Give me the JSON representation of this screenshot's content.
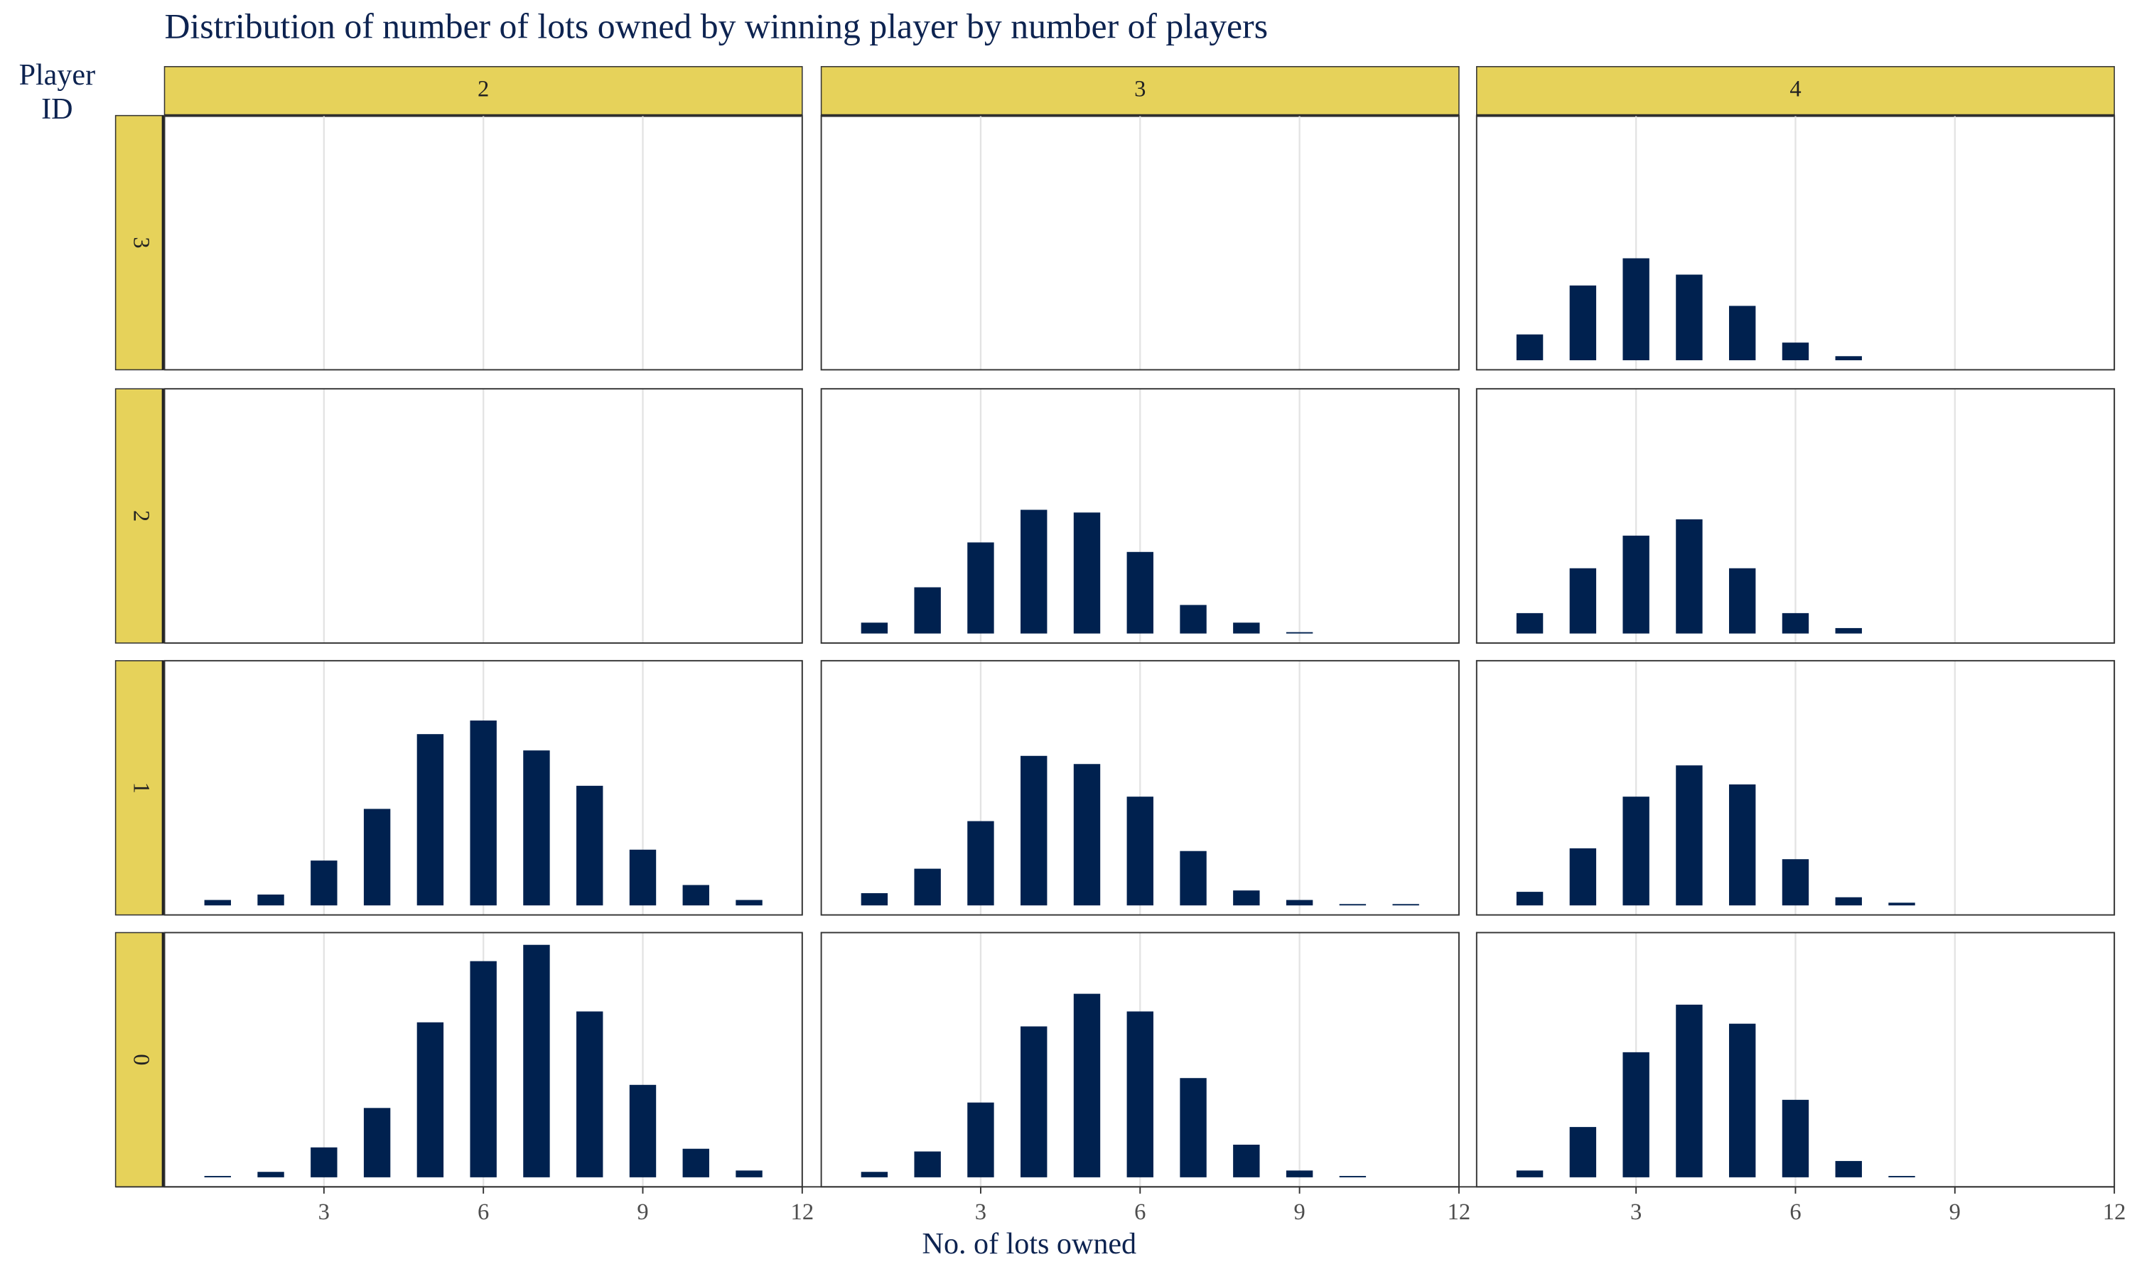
{
  "chart_data": {
    "type": "bar",
    "title": "Distribution of number of lots owned by winning player by number of players",
    "xlabel": "No. of lots owned",
    "row_title": "Player ID",
    "columns": [
      "2",
      "3",
      "4"
    ],
    "rows": [
      "3",
      "2",
      "1",
      "0"
    ],
    "xlim": [
      0,
      12
    ],
    "xticks": [
      3,
      6,
      9,
      12
    ],
    "ylim": [
      0,
      180
    ],
    "grid": true,
    "color": "#00214f",
    "strip_color": "#e6d25a",
    "panels": [
      [
        {
          "x": [],
          "values": []
        },
        {
          "x": [],
          "values": []
        },
        {
          "x": [
            1,
            2,
            3,
            4,
            5,
            6,
            7
          ],
          "values": [
            19,
            55,
            75,
            63,
            40,
            13,
            3
          ]
        }
      ],
      [
        {
          "x": [],
          "values": []
        },
        {
          "x": [
            1,
            2,
            3,
            4,
            5,
            6,
            7,
            8,
            9
          ],
          "values": [
            8,
            34,
            67,
            91,
            89,
            60,
            21,
            8,
            1
          ]
        },
        {
          "x": [
            1,
            2,
            3,
            4,
            5,
            6,
            7
          ],
          "values": [
            15,
            48,
            72,
            84,
            48,
            15,
            4
          ]
        }
      ],
      [
        {
          "x": [
            1,
            2,
            3,
            4,
            5,
            6,
            7,
            8,
            9,
            10,
            11
          ],
          "values": [
            4,
            8,
            33,
            71,
            126,
            136,
            114,
            88,
            41,
            15,
            4
          ]
        },
        {
          "x": [
            1,
            2,
            3,
            4,
            5,
            6,
            7,
            8,
            9,
            10,
            11
          ],
          "values": [
            9,
            27,
            62,
            110,
            104,
            80,
            40,
            11,
            4,
            1,
            1
          ]
        },
        {
          "x": [
            1,
            2,
            3,
            4,
            5,
            6,
            7,
            8
          ],
          "values": [
            10,
            42,
            80,
            103,
            89,
            34,
            6,
            2
          ]
        }
      ],
      [
        {
          "x": [
            1,
            2,
            3,
            4,
            5,
            6,
            7,
            8,
            9,
            10,
            11
          ],
          "values": [
            1,
            4,
            22,
            51,
            114,
            159,
            171,
            122,
            68,
            21,
            5
          ]
        },
        {
          "x": [
            1,
            2,
            3,
            4,
            5,
            6,
            7,
            8,
            9,
            10
          ],
          "values": [
            4,
            19,
            55,
            111,
            135,
            122,
            73,
            24,
            5,
            1
          ]
        },
        {
          "x": [
            1,
            2,
            3,
            4,
            5,
            6,
            7,
            8
          ],
          "values": [
            5,
            37,
            92,
            127,
            113,
            57,
            12,
            1
          ]
        }
      ]
    ]
  }
}
